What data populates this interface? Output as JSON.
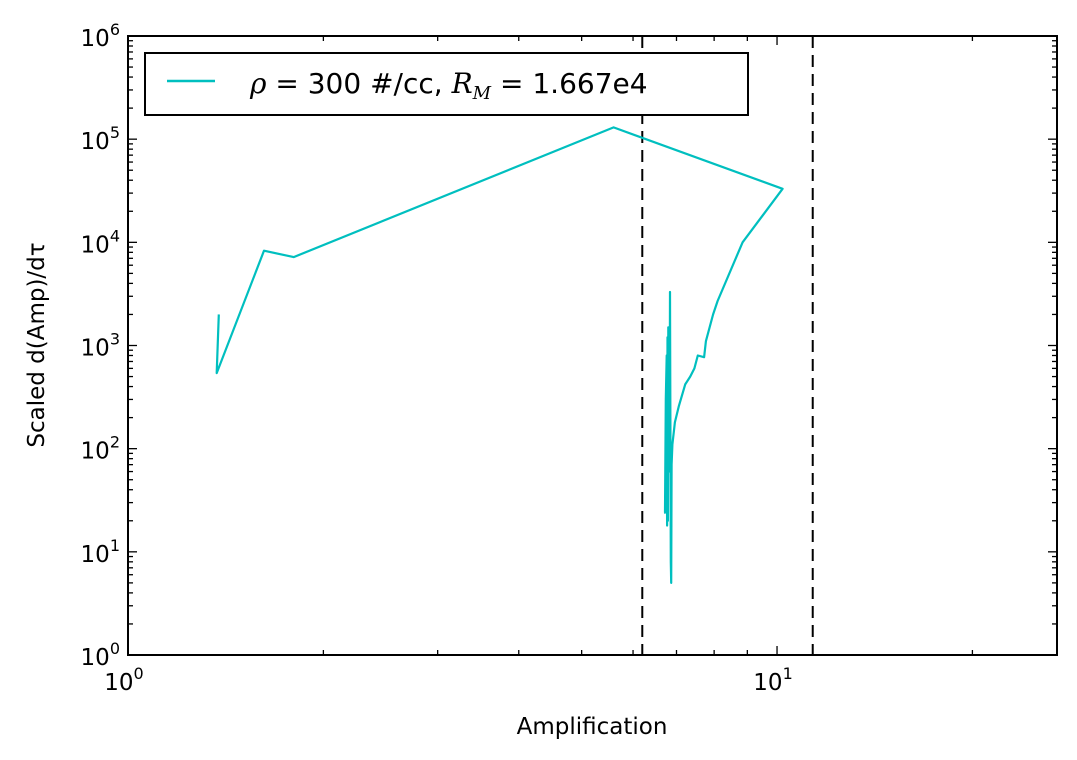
{
  "chart_data": {
    "type": "line",
    "xlabel": "Amplification",
    "ylabel": "Scaled d(Amp)/dτ",
    "xscale": "log",
    "yscale": "log",
    "xlim": [
      1,
      27
    ],
    "ylim": [
      1,
      1000000
    ],
    "x_ticks": [
      {
        "base": "10",
        "exp": "0",
        "value": 1
      },
      {
        "base": "10",
        "exp": "1",
        "value": 10
      }
    ],
    "y_ticks": [
      {
        "base": "10",
        "exp": "0",
        "value": 1
      },
      {
        "base": "10",
        "exp": "1",
        "value": 10
      },
      {
        "base": "10",
        "exp": "2",
        "value": 100
      },
      {
        "base": "10",
        "exp": "3",
        "value": 1000
      },
      {
        "base": "10",
        "exp": "4",
        "value": 10000
      },
      {
        "base": "10",
        "exp": "5",
        "value": 100000
      },
      {
        "base": "10",
        "exp": "6",
        "value": 1000000
      }
    ],
    "grid": false,
    "legend_position": "top-left",
    "legend": {
      "rho_symbol": "ρ",
      "text_a": " =  300 #/cc, ",
      "rm_symbol": "R",
      "rm_sub": "M",
      "text_b": " = 1.667e4"
    },
    "series": [
      {
        "color": "#00bfbf",
        "x": [
          1.38,
          1.37,
          1.62,
          1.8,
          5.6,
          10.2,
          8.85,
          8.1,
          7.97,
          7.77,
          7.72,
          7.55,
          7.46,
          7.35,
          7.22,
          7.06,
          6.96,
          6.9,
          6.88,
          6.87,
          6.86,
          6.84,
          6.83,
          6.82,
          6.81,
          6.8,
          6.79,
          6.78,
          6.77,
          6.76,
          6.74,
          6.72,
          6.7
        ],
        "y": [
          2000,
          540,
          8300,
          7200,
          130000,
          33000,
          10000,
          2700,
          2000,
          1100,
          770,
          800,
          600,
          500,
          420,
          260,
          180,
          110,
          70,
          5,
          8,
          3300,
          110,
          1300,
          60,
          1500,
          20,
          1200,
          18,
          800,
          300,
          24,
          24
        ]
      }
    ],
    "vlines": [
      6.2,
      11.35
    ],
    "vline_color": "#000000"
  }
}
